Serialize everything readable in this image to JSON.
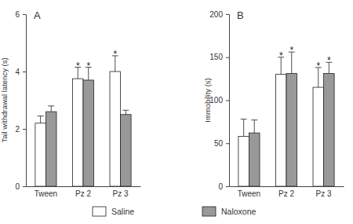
{
  "chart_data": [
    {
      "type": "bar",
      "title": "A",
      "y_label": "Tail withdrawal latency (s)",
      "categories": [
        "Tween",
        "Pz 2",
        "Pz 3"
      ],
      "series": [
        {
          "name": "Saline",
          "color": "#ffffff",
          "values": [
            2.2,
            3.75,
            4.0
          ],
          "errors": [
            0.25,
            0.4,
            0.55
          ],
          "annotations": [
            null,
            "*",
            "*"
          ]
        },
        {
          "name": "Naloxone",
          "color": "#999999",
          "values": [
            2.6,
            3.7,
            2.5
          ],
          "errors": [
            0.2,
            0.45,
            0.15
          ],
          "annotations": [
            null,
            "*",
            null
          ]
        }
      ],
      "ylim": [
        0,
        6
      ],
      "yticks": [
        0,
        2,
        4,
        6
      ],
      "legend": "bottom"
    },
    {
      "type": "bar",
      "title": "B",
      "y_label": "Immobility (s)",
      "categories": [
        "Tween",
        "Pz 2",
        "Pz 3"
      ],
      "series": [
        {
          "name": "Saline",
          "color": "#ffffff",
          "values": [
            58,
            130,
            115
          ],
          "errors": [
            20,
            20,
            23
          ],
          "annotations": [
            null,
            "*",
            "*"
          ]
        },
        {
          "name": "Naloxone",
          "color": "#999999",
          "values": [
            62,
            131,
            131
          ],
          "errors": [
            15,
            25,
            13
          ],
          "annotations": [
            null,
            "*",
            "*"
          ]
        }
      ],
      "ylim": [
        0,
        200
      ],
      "yticks": [
        0,
        50,
        100,
        150,
        200
      ]
    }
  ]
}
